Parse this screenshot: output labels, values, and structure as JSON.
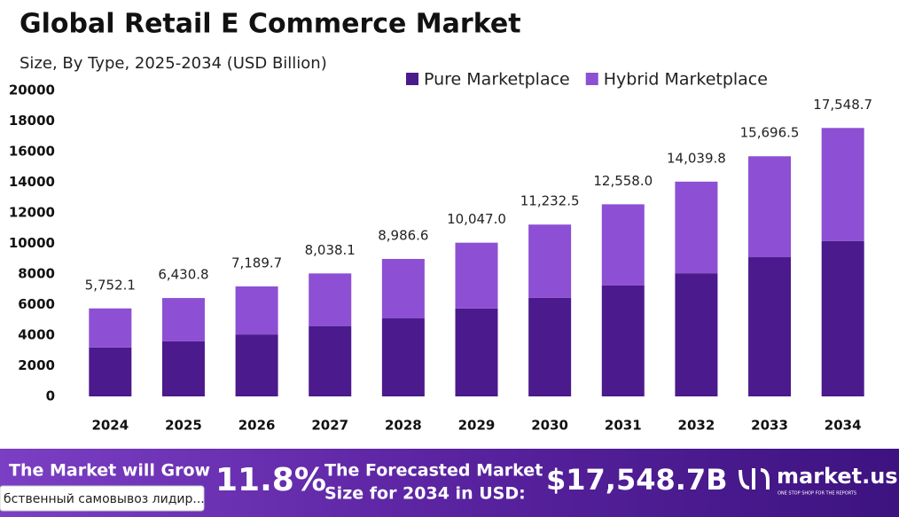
{
  "chart_data": {
    "type": "stacked_bar",
    "title": "Global Retail E Commerce Market",
    "subtitle": "Size, By Type, 2025-2034 (USD Billion)",
    "categories": [
      "2024",
      "2025",
      "2026",
      "2027",
      "2028",
      "2029",
      "2030",
      "2031",
      "2032",
      "2033",
      "2034"
    ],
    "series": [
      {
        "name": "Pure Marketplace",
        "color": "#4b1a8c",
        "values": [
          3200,
          3600,
          4050,
          4600,
          5100,
          5750,
          6450,
          7250,
          8050,
          9100,
          10150
        ]
      },
      {
        "name": "Hybrid Marketplace",
        "color": "#8d4fd3",
        "values": [
          2552.1,
          2830.8,
          3139.7,
          3438.1,
          3886.6,
          4297.0,
          4782.5,
          5308.0,
          5989.8,
          6596.5,
          7398.7
        ]
      }
    ],
    "totals": [
      5752.1,
      6430.8,
      7189.7,
      8038.1,
      8986.6,
      10047.0,
      11232.5,
      12558.0,
      14039.8,
      15696.5,
      17548.7
    ],
    "total_labels": [
      "5,752.1",
      "6,430.8",
      "7,189.7",
      "8,038.1",
      "8,986.6",
      "10,047.0",
      "11,232.5",
      "12,558.0",
      "14,039.8",
      "15,696.5",
      "17,548.7"
    ],
    "ylim": [
      0,
      20000
    ],
    "yticks": [
      0,
      2000,
      4000,
      6000,
      8000,
      10000,
      12000,
      14000,
      16000,
      18000,
      20000
    ],
    "legend": "top-right"
  },
  "banner": {
    "grow_text": "The Market will Grow",
    "cagr": "11.8%",
    "forecast_text_1": "The Forecasted Market",
    "forecast_text_2": "Size for 2034 in USD:",
    "forecast_value": "$17,548.7B",
    "brand": "market.us",
    "brand_tagline": "ONE STOP SHOP FOR THE REPORTS"
  },
  "overlay_text": "бственный самовывоз лидир..."
}
